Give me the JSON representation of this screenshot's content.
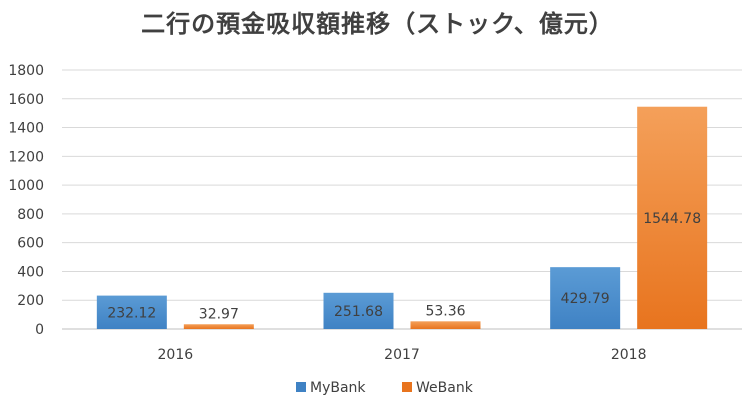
{
  "chart_data": {
    "type": "bar",
    "title": "二行の預金吸収額推移（ストック、億元）",
    "categories": [
      "2016",
      "2017",
      "2018"
    ],
    "series": [
      {
        "name": "MyBank",
        "values": [
          232.12,
          251.68,
          429.79
        ],
        "color": "#5b9bd5",
        "color_dark": "#3f82c4"
      },
      {
        "name": "WeBank",
        "values": [
          32.97,
          53.36,
          1544.78
        ],
        "color": "#f4a05a",
        "color_dark": "#e8741e"
      }
    ],
    "ylim": [
      0,
      1800
    ],
    "yticks": [
      0,
      200,
      400,
      600,
      800,
      1000,
      1200,
      1400,
      1600,
      1800
    ],
    "grid": true,
    "legend_position": "bottom"
  }
}
